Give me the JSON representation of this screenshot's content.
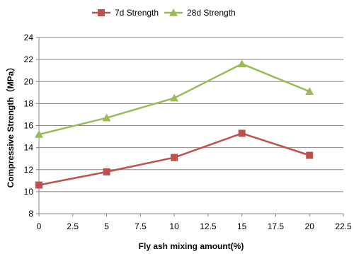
{
  "chart_data": {
    "type": "line",
    "title": "",
    "xlabel": "Fly ash mixing amount(%)",
    "ylabel": "Compressive Strength（MPa）",
    "xlim": [
      0,
      22.5
    ],
    "ylim": [
      8,
      24
    ],
    "xticks": [
      0,
      2.5,
      5,
      7.5,
      10,
      12.5,
      15,
      17.5,
      20,
      22.5
    ],
    "xtick_labels": [
      "0",
      "2.5",
      "5",
      "7.5",
      "10",
      "12.5",
      "15",
      "17.5",
      "20",
      "22.5"
    ],
    "yticks": [
      8,
      10,
      12,
      14,
      16,
      18,
      20,
      22,
      24
    ],
    "ytick_labels": [
      "8",
      "10",
      "12",
      "14",
      "16",
      "18",
      "20",
      "22",
      "24"
    ],
    "grid": "horizontal",
    "legend": "top-center",
    "series": [
      {
        "name": "7d Strength",
        "color": "#C0504D",
        "marker": "square",
        "x": [
          0,
          5,
          10,
          15,
          20
        ],
        "y": [
          10.6,
          11.8,
          13.1,
          15.3,
          13.3
        ]
      },
      {
        "name": "28d Strength",
        "color": "#9BBB59",
        "marker": "triangle",
        "x": [
          0,
          5,
          10,
          15,
          20
        ],
        "y": [
          15.2,
          16.7,
          18.5,
          21.6,
          19.1
        ]
      }
    ]
  }
}
